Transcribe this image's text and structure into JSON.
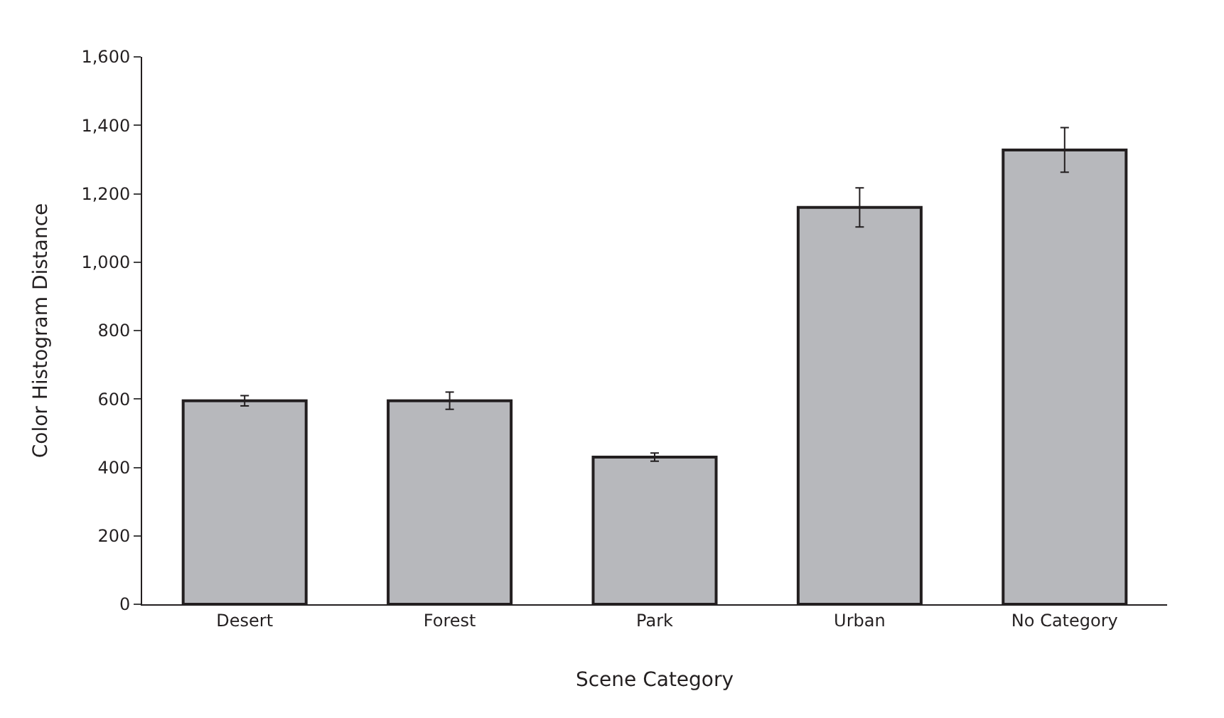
{
  "chart_data": {
    "type": "bar",
    "xlabel": "Scene Category",
    "ylabel": "Color Histogram Distance",
    "categories": [
      "Desert",
      "Forest",
      "Park",
      "Urban",
      "No Category"
    ],
    "values": [
      595,
      595,
      430,
      1160,
      1328
    ],
    "errors": [
      15,
      25,
      12,
      57,
      65
    ],
    "color": "#b7b8bc",
    "ylim": [
      0,
      1600
    ],
    "yticks": [
      {
        "value": 0,
        "label": "0"
      },
      {
        "value": 200,
        "label": "200"
      },
      {
        "value": 400,
        "label": "400"
      },
      {
        "value": 600,
        "label": "600"
      },
      {
        "value": 800,
        "label": "800"
      },
      {
        "value": 1000,
        "label": "1,000"
      },
      {
        "value": 1200,
        "label": "1,200"
      },
      {
        "value": 1400,
        "label": "1,400"
      },
      {
        "value": 1600,
        "label": "1,600"
      }
    ]
  }
}
